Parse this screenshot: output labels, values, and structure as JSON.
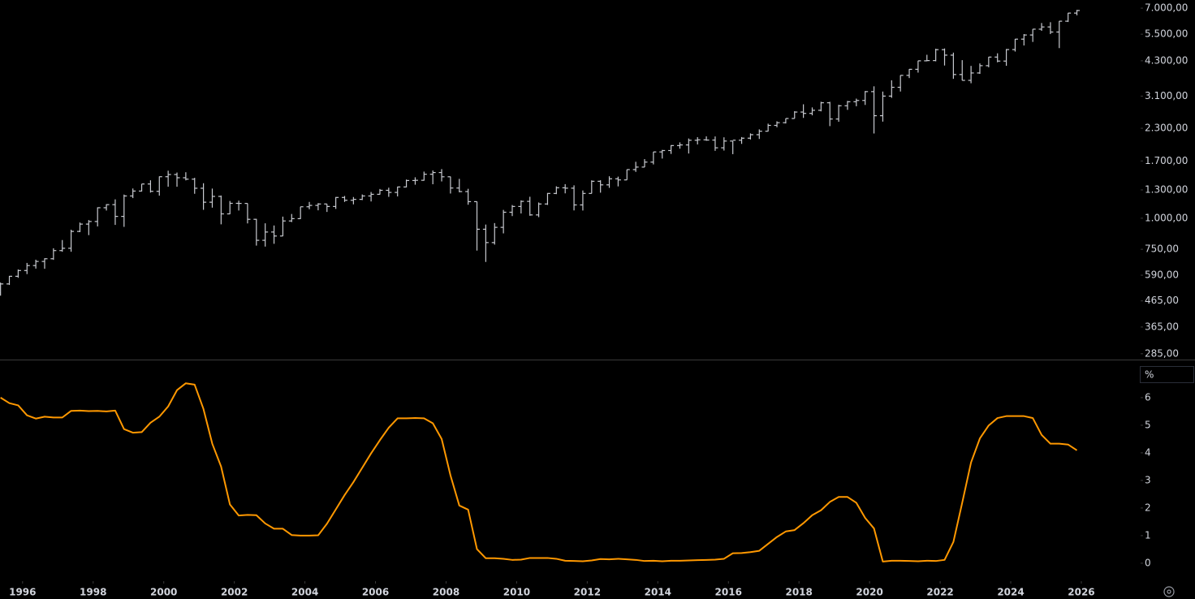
{
  "chart_data": [
    {
      "type": "ohlc",
      "log_scale": true,
      "color": "#c8cad0",
      "x": [
        1995.375,
        1995.625,
        1995.875,
        1996.125,
        1996.375,
        1996.625,
        1996.875,
        1997.125,
        1997.375,
        1997.625,
        1997.875,
        1998.125,
        1998.375,
        1998.625,
        1998.875,
        1999.125,
        1999.375,
        1999.625,
        1999.875,
        2000.125,
        2000.375,
        2000.625,
        2000.875,
        2001.125,
        2001.375,
        2001.625,
        2001.875,
        2002.125,
        2002.375,
        2002.625,
        2002.875,
        2003.125,
        2003.375,
        2003.625,
        2003.875,
        2004.125,
        2004.375,
        2004.625,
        2004.875,
        2005.125,
        2005.375,
        2005.625,
        2005.875,
        2006.125,
        2006.375,
        2006.625,
        2006.875,
        2007.125,
        2007.375,
        2007.625,
        2007.875,
        2008.125,
        2008.375,
        2008.625,
        2008.875,
        2009.125,
        2009.375,
        2009.625,
        2009.875,
        2010.125,
        2010.375,
        2010.625,
        2010.875,
        2011.125,
        2011.375,
        2011.625,
        2011.875,
        2012.125,
        2012.375,
        2012.625,
        2012.875,
        2013.125,
        2013.375,
        2013.625,
        2013.875,
        2014.125,
        2014.375,
        2014.625,
        2014.875,
        2015.125,
        2015.375,
        2015.625,
        2015.875,
        2016.125,
        2016.375,
        2016.625,
        2016.875,
        2017.125,
        2017.375,
        2017.625,
        2017.875,
        2018.125,
        2018.375,
        2018.625,
        2018.875,
        2019.125,
        2019.375,
        2019.625,
        2019.875,
        2020.125,
        2020.375,
        2020.625,
        2020.875,
        2021.125,
        2021.375,
        2021.625,
        2021.875,
        2022.125,
        2022.375,
        2022.625,
        2022.875,
        2023.125,
        2023.375,
        2023.625,
        2023.875,
        2024.125,
        2024.375,
        2024.625,
        2024.875,
        2025.125,
        2025.375,
        2025.625,
        2025.875
      ],
      "open": [
        501,
        544,
        584,
        616,
        645,
        670,
        687,
        741,
        757,
        885,
        947,
        970,
        1102,
        1134,
        1017,
        1229,
        1286,
        1373,
        1283,
        1469,
        1499,
        1455,
        1436,
        1320,
        1160,
        1224,
        1041,
        1148,
        1147,
        990,
        815,
        880,
        848,
        975,
        996,
        1112,
        1126,
        1141,
        1115,
        1212,
        1181,
        1191,
        1229,
        1248,
        1295,
        1270,
        1336,
        1418,
        1421,
        1503,
        1527,
        1468,
        1323,
        1280,
        1166,
        903,
        798,
        919,
        1057,
        1115,
        1169,
        1031,
        1141,
        1258,
        1326,
        1321,
        1131,
        1258,
        1408,
        1362,
        1441,
        1426,
        1569,
        1606,
        1682,
        1848,
        1872,
        1960,
        1972,
        2059,
        2068,
        2063,
        1920,
        2044,
        2060,
        2099,
        2168,
        2239,
        2363,
        2423,
        2519,
        2674,
        2641,
        2718,
        2914,
        2507,
        2834,
        2942,
        2977,
        3231,
        2585,
        3100,
        3363,
        3756,
        3973,
        4298,
        4308,
        4766,
        4530,
        3785,
        3586,
        3840,
        4109,
        4450,
        4288,
        4770,
        5254,
        5460,
        5762,
        5882,
        5612,
        6205,
        6688
      ],
      "high": [
        551,
        586,
        622,
        661,
        681,
        690,
        757,
        817,
        899,
        961,
        983,
        1106,
        1139,
        1191,
        1245,
        1317,
        1373,
        1421,
        1473,
        1553,
        1527,
        1531,
        1454,
        1383,
        1316,
        1234,
        1173,
        1177,
        1147,
        994,
        954,
        935,
        1015,
        1040,
        1112,
        1163,
        1150,
        1141,
        1217,
        1229,
        1217,
        1246,
        1275,
        1311,
        1327,
        1340,
        1431,
        1461,
        1540,
        1556,
        1576,
        1471,
        1440,
        1313,
        1167,
        943,
        956,
        1080,
        1130,
        1180,
        1220,
        1157,
        1263,
        1344,
        1371,
        1356,
        1293,
        1420,
        1422,
        1475,
        1470,
        1570,
        1687,
        1729,
        1849,
        1883,
        1968,
        2019,
        2093,
        2119,
        2135,
        2133,
        2116,
        2044,
        2121,
        2194,
        2278,
        2401,
        2454,
        2520,
        2695,
        2873,
        2791,
        2941,
        2940,
        2860,
        2964,
        3028,
        3248,
        3394,
        3233,
        3588,
        3760,
        3983,
        4302,
        4545,
        4808,
        4819,
        4637,
        4325,
        4101,
        4196,
        4458,
        4608,
        4794,
        5264,
        5506,
        5768,
        6100,
        6147,
        6215,
        6700,
        6890
      ],
      "low": [
        488,
        539,
        576,
        596,
        627,
        626,
        680,
        733,
        733,
        879,
        855,
        927,
        1074,
        940,
        923,
        1205,
        1281,
        1268,
        1233,
        1339,
        1339,
        1420,
        1254,
        1081,
        1103,
        945,
        1038,
        1074,
        953,
        776,
        769,
        789,
        847,
        965,
        993,
        1087,
        1076,
        1060,
        1090,
        1163,
        1137,
        1183,
        1168,
        1245,
        1219,
        1224,
        1331,
        1364,
        1416,
        1370,
        1406,
        1257,
        1272,
        1133,
        741,
        667,
        783,
        869,
        1020,
        1045,
        1023,
        1010,
        1131,
        1250,
        1259,
        1075,
        1074,
        1258,
        1267,
        1325,
        1343,
        1426,
        1536,
        1604,
        1646,
        1738,
        1814,
        1904,
        1821,
        1981,
        2049,
        1867,
        1872,
        1810,
        1991,
        2074,
        2084,
        2234,
        2323,
        2406,
        2520,
        2533,
        2594,
        2691,
        2347,
        2444,
        2729,
        2822,
        2856,
        2192,
        2447,
        3050,
        3234,
        3663,
        3853,
        4280,
        4279,
        4115,
        3637,
        3584,
        3492,
        3809,
        4048,
        4239,
        4104,
        4683,
        4954,
        5120,
        5675,
        5505,
        4835,
        6159,
        6551
      ],
      "close": [
        544,
        584,
        616,
        645,
        670,
        687,
        741,
        757,
        885,
        947,
        970,
        1102,
        1134,
        1017,
        1229,
        1286,
        1373,
        1283,
        1469,
        1499,
        1455,
        1436,
        1320,
        1160,
        1224,
        1041,
        1148,
        1147,
        990,
        815,
        880,
        848,
        975,
        996,
        1112,
        1126,
        1141,
        1115,
        1212,
        1181,
        1191,
        1229,
        1248,
        1295,
        1270,
        1336,
        1418,
        1421,
        1503,
        1527,
        1468,
        1323,
        1280,
        1166,
        903,
        798,
        919,
        1057,
        1115,
        1169,
        1031,
        1141,
        1258,
        1326,
        1321,
        1131,
        1258,
        1408,
        1362,
        1441,
        1426,
        1569,
        1606,
        1682,
        1848,
        1872,
        1960,
        1972,
        2059,
        2068,
        2063,
        1920,
        2044,
        2060,
        2099,
        2168,
        2239,
        2363,
        2423,
        2519,
        2674,
        2641,
        2718,
        2914,
        2507,
        2834,
        2942,
        2977,
        3231,
        2585,
        3100,
        3363,
        3756,
        3973,
        4298,
        4308,
        4766,
        4530,
        3785,
        3586,
        3840,
        4109,
        4450,
        4288,
        4770,
        5254,
        5460,
        5762,
        5882,
        5612,
        6205,
        6688,
        6850
      ],
      "xlim": [
        1995.36,
        2027.68
      ],
      "ylim": [
        270,
        7550
      ],
      "yticks": [
        {
          "value": 7000,
          "label": "7.000,00"
        },
        {
          "value": 5500,
          "label": "5.500,00"
        },
        {
          "value": 4300,
          "label": "4.300,00"
        },
        {
          "value": 3100,
          "label": "3.100,00"
        },
        {
          "value": 2300,
          "label": "2.300,00"
        },
        {
          "value": 1700,
          "label": "1.700,00"
        },
        {
          "value": 1300,
          "label": "1.300,00"
        },
        {
          "value": 1000,
          "label": "1.000,00"
        },
        {
          "value": 750,
          "label": "750,00"
        },
        {
          "value": 590,
          "label": "590,00"
        },
        {
          "value": 465,
          "label": "465,00"
        },
        {
          "value": 365,
          "label": "365,00"
        },
        {
          "value": 285,
          "label": "285,00"
        }
      ]
    },
    {
      "type": "line",
      "color": "#ff9800",
      "ylabel": "%",
      "x": [
        1995.375,
        1995.625,
        1995.875,
        1996.125,
        1996.375,
        1996.625,
        1996.875,
        1997.125,
        1997.375,
        1997.625,
        1997.875,
        1998.125,
        1998.375,
        1998.625,
        1998.875,
        1999.125,
        1999.375,
        1999.625,
        1999.875,
        2000.125,
        2000.375,
        2000.625,
        2000.875,
        2001.125,
        2001.375,
        2001.625,
        2001.875,
        2002.125,
        2002.375,
        2002.625,
        2002.875,
        2003.125,
        2003.375,
        2003.625,
        2003.875,
        2004.125,
        2004.375,
        2004.625,
        2004.875,
        2005.125,
        2005.375,
        2005.625,
        2005.875,
        2006.125,
        2006.375,
        2006.625,
        2006.875,
        2007.125,
        2007.375,
        2007.625,
        2007.875,
        2008.125,
        2008.375,
        2008.625,
        2008.875,
        2009.125,
        2009.375,
        2009.625,
        2009.875,
        2010.125,
        2010.375,
        2010.625,
        2010.875,
        2011.125,
        2011.375,
        2011.625,
        2011.875,
        2012.125,
        2012.375,
        2012.625,
        2012.875,
        2013.125,
        2013.375,
        2013.625,
        2013.875,
        2014.125,
        2014.375,
        2014.625,
        2014.875,
        2015.125,
        2015.375,
        2015.625,
        2015.875,
        2016.125,
        2016.375,
        2016.625,
        2016.875,
        2017.125,
        2017.375,
        2017.625,
        2017.875,
        2018.125,
        2018.375,
        2018.625,
        2018.875,
        2019.125,
        2019.375,
        2019.625,
        2019.875,
        2020.125,
        2020.375,
        2020.625,
        2020.875,
        2021.125,
        2021.375,
        2021.625,
        2021.875,
        2022.125,
        2022.375,
        2022.625,
        2022.875,
        2023.125,
        2023.375,
        2023.625,
        2023.875,
        2024.125,
        2024.375,
        2024.625,
        2024.875,
        2025.125,
        2025.375,
        2025.625,
        2025.875
      ],
      "values": [
        6.0,
        5.8,
        5.72,
        5.36,
        5.24,
        5.31,
        5.28,
        5.28,
        5.52,
        5.53,
        5.51,
        5.52,
        5.5,
        5.53,
        4.86,
        4.73,
        4.75,
        5.09,
        5.31,
        5.68,
        6.27,
        6.52,
        6.47,
        5.59,
        4.33,
        3.5,
        2.13,
        1.73,
        1.75,
        1.74,
        1.44,
        1.25,
        1.25,
        1.02,
        1.0,
        1.0,
        1.01,
        1.43,
        1.95,
        2.47,
        2.94,
        3.46,
        3.98,
        4.46,
        4.91,
        5.25,
        5.25,
        5.26,
        5.25,
        5.07,
        4.5,
        3.18,
        2.09,
        1.94,
        0.51,
        0.18,
        0.18,
        0.16,
        0.12,
        0.13,
        0.19,
        0.19,
        0.19,
        0.16,
        0.09,
        0.08,
        0.07,
        0.1,
        0.15,
        0.14,
        0.16,
        0.14,
        0.12,
        0.08,
        0.09,
        0.07,
        0.09,
        0.09,
        0.1,
        0.11,
        0.12,
        0.13,
        0.16,
        0.36,
        0.37,
        0.4,
        0.45,
        0.7,
        0.95,
        1.15,
        1.2,
        1.45,
        1.74,
        1.92,
        2.22,
        2.4,
        2.4,
        2.19,
        1.64,
        1.26,
        0.06,
        0.09,
        0.09,
        0.08,
        0.07,
        0.09,
        0.08,
        0.12,
        0.77,
        2.19,
        3.65,
        4.52,
        4.99,
        5.26,
        5.33,
        5.33,
        5.33,
        5.26,
        4.65,
        4.33,
        4.33,
        4.3,
        4.09
      ],
      "xlim": [
        1995.36,
        2027.68
      ],
      "ylim": [
        -0.65,
        7.35
      ],
      "yticks": [
        0,
        1,
        2,
        3,
        4,
        5,
        6
      ],
      "xticks": [
        1996,
        1998,
        2000,
        2002,
        2004,
        2006,
        2008,
        2010,
        2012,
        2014,
        2016,
        2018,
        2020,
        2022,
        2024,
        2026
      ]
    }
  ]
}
